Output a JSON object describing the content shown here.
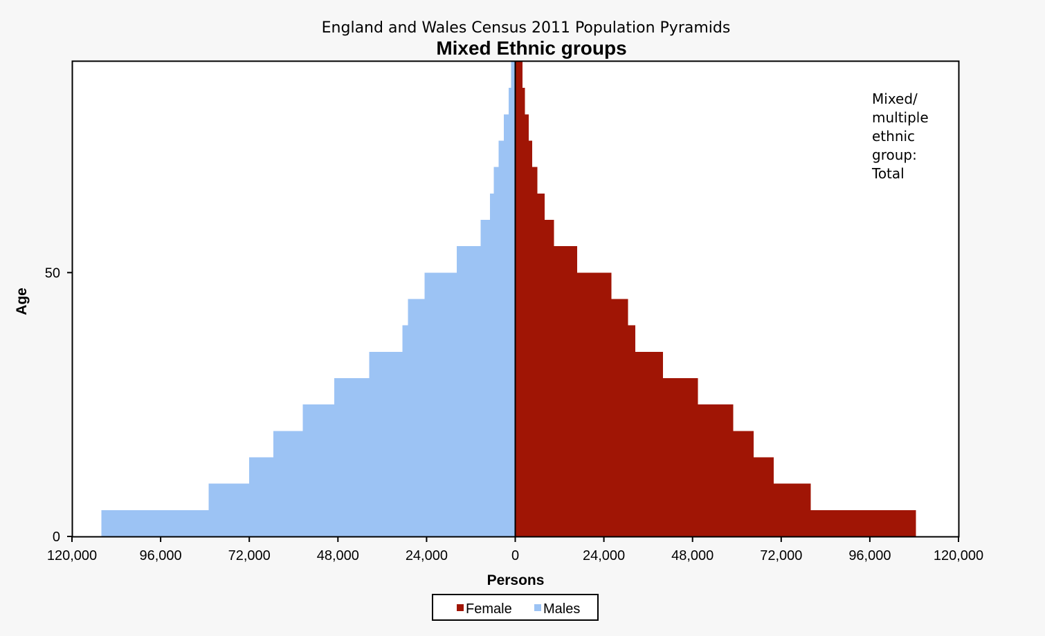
{
  "chart_data": {
    "type": "bar",
    "orientation": "horizontal-pyramid",
    "supertitle": "England and Wales Census 2011 Population Pyramids",
    "title": "Mixed Ethnic groups",
    "xlabel": "Persons",
    "ylabel": "Age",
    "xlim": [
      -120000,
      120000
    ],
    "xticks": [
      -120000,
      -96000,
      -72000,
      -48000,
      -24000,
      0,
      24000,
      48000,
      72000,
      96000,
      120000
    ],
    "xtick_labels": [
      "120,000",
      "96,000",
      "72,000",
      "48,000",
      "24,000",
      "0",
      "24,000",
      "48,000",
      "72,000",
      "96,000",
      "120,000"
    ],
    "ylim": [
      0,
      90
    ],
    "yticks": [
      0,
      50
    ],
    "ytick_labels": [
      "0",
      "50"
    ],
    "age_groups": [
      "0-4",
      "5-9",
      "10-14",
      "15-19",
      "20-24",
      "25-29",
      "30-34",
      "35-39",
      "40-44",
      "45-49",
      "50-54",
      "55-59",
      "60-64",
      "65-69",
      "70-74",
      "75-79",
      "80-84",
      "85-89"
    ],
    "series": [
      {
        "name": "Female",
        "color": "#a01505",
        "values": [
          108500,
          80000,
          70000,
          64500,
          59000,
          49500,
          40000,
          32500,
          30500,
          26000,
          16800,
          10500,
          8000,
          6000,
          4600,
          3700,
          2600,
          2000
        ]
      },
      {
        "name": "Males",
        "color": "#9cc3f4",
        "values": [
          112000,
          83000,
          72000,
          65500,
          57500,
          49000,
          39500,
          30500,
          29000,
          24500,
          15800,
          9400,
          6800,
          5800,
          4500,
          3100,
          1800,
          1100
        ]
      }
    ],
    "annotation": [
      "Mixed/",
      "multiple",
      "ethnic",
      "group:",
      "Total"
    ],
    "legend": {
      "placement": "bottom-center",
      "entries": [
        {
          "label": "Female",
          "color": "#a01505"
        },
        {
          "label": "Males",
          "color": "#9cc3f4"
        }
      ]
    },
    "grid": false
  }
}
